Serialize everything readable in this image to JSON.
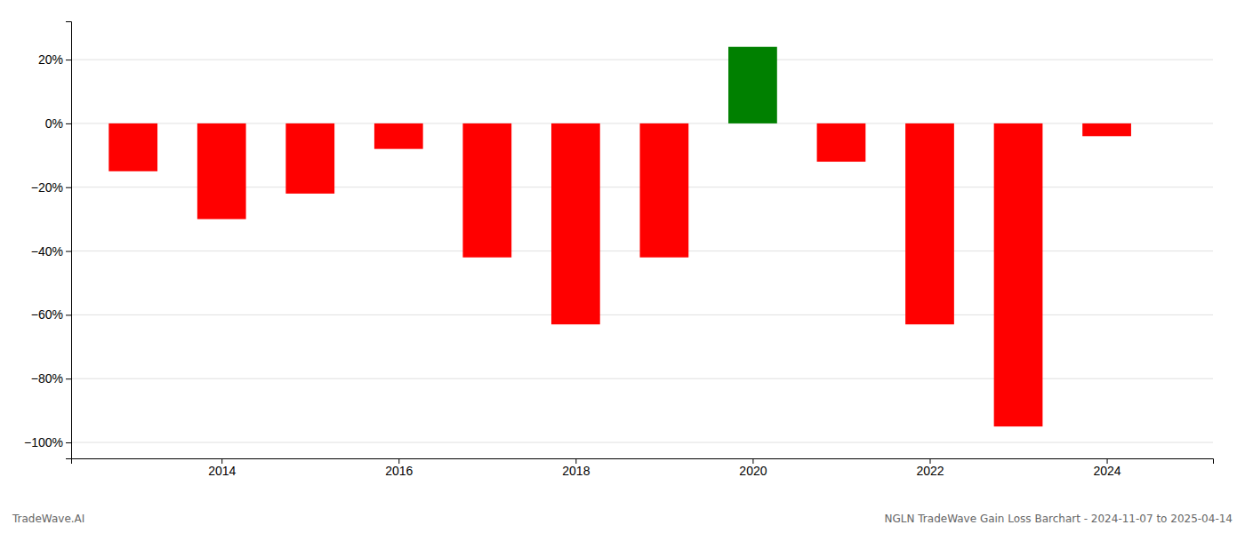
{
  "chart_data": {
    "type": "bar",
    "x": [
      2013,
      2014,
      2015,
      2016,
      2017,
      2018,
      2019,
      2020,
      2021,
      2022,
      2023,
      2024
    ],
    "values": [
      -0.15,
      -0.3,
      -0.22,
      -0.08,
      -0.42,
      -0.63,
      -0.42,
      0.24,
      -0.12,
      -0.63,
      -0.95,
      -0.04
    ],
    "colors": [
      "#ff0000",
      "#ff0000",
      "#ff0000",
      "#ff0000",
      "#ff0000",
      "#ff0000",
      "#ff0000",
      "#008000",
      "#ff0000",
      "#ff0000",
      "#ff0000",
      "#ff0000"
    ],
    "xlim": [
      2012.3,
      2025.2
    ],
    "xticks": [
      2014,
      2016,
      2018,
      2020,
      2022,
      2024
    ],
    "ylim": [
      -1.05,
      0.32
    ],
    "yticks": [
      {
        "value": 0.2,
        "label": "20%"
      },
      {
        "value": 0.0,
        "label": "0%"
      },
      {
        "value": -0.2,
        "label": "−20%"
      },
      {
        "value": -0.4,
        "label": "−40%"
      },
      {
        "value": -0.6,
        "label": "−60%"
      },
      {
        "value": -0.8,
        "label": "−80%"
      },
      {
        "value": -1.0,
        "label": "−100%"
      }
    ],
    "grid": true,
    "annotations": [
      "TradeWave.AI",
      "NGLN TradeWave Gain Loss Barchart - 2024-11-07 to 2025-04-14"
    ]
  }
}
